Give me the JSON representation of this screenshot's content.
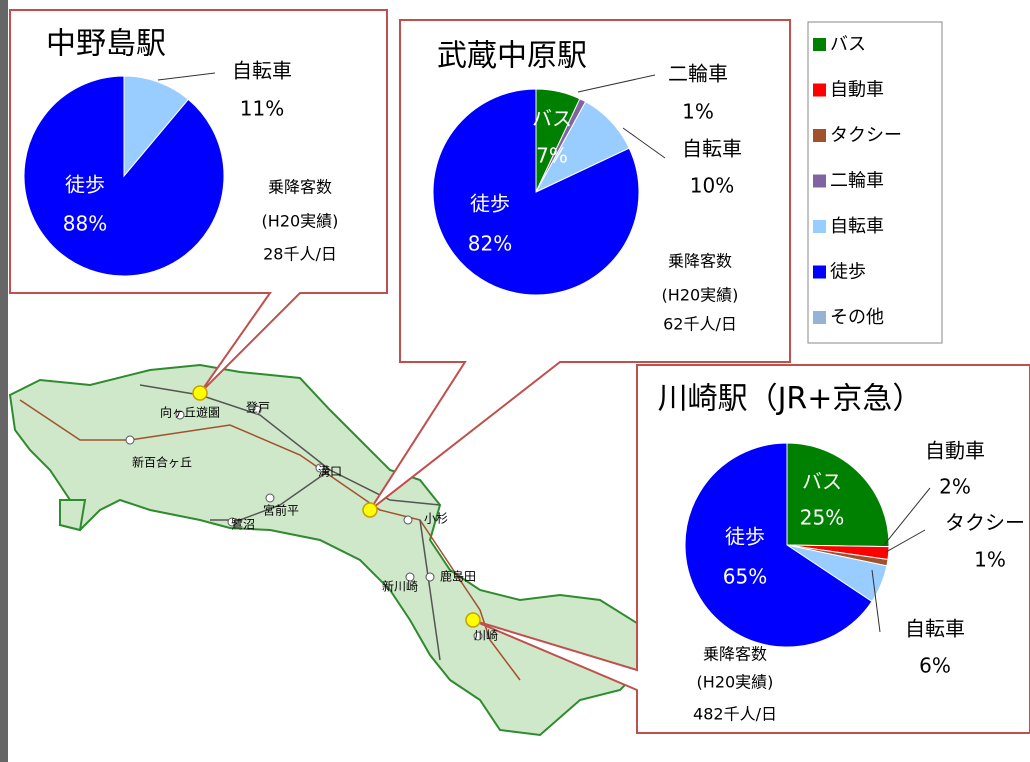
{
  "chart_data": [
    {
      "type": "pie",
      "title": "中野島駅",
      "categories": [
        "自転車",
        "徒歩"
      ],
      "values": [
        11,
        88
      ],
      "value_labels": [
        "11%",
        "88%"
      ],
      "annotations": [
        "乗降客数",
        "(H20実績)",
        "28千人/日"
      ]
    },
    {
      "type": "pie",
      "title": "武蔵中原駅",
      "categories": [
        "バス",
        "二輪車",
        "自転車",
        "徒歩"
      ],
      "values": [
        7,
        1,
        10,
        82
      ],
      "value_labels": [
        "7%",
        "1%",
        "10%",
        "82%"
      ],
      "annotations": [
        "乗降客数",
        "(H20実績)",
        "62千人/日"
      ]
    },
    {
      "type": "pie",
      "title": "川崎駅（JR+京急）",
      "categories": [
        "バス",
        "自動車",
        "タクシー",
        "自転車",
        "徒歩"
      ],
      "values": [
        25,
        2,
        1,
        6,
        65
      ],
      "value_labels": [
        "25%",
        "2%",
        "1%",
        "6%",
        "65%"
      ],
      "annotations": [
        "乗降客数",
        "(H20実績)",
        "482千人/日"
      ]
    }
  ],
  "legend": {
    "items": [
      {
        "name": "バス",
        "color": "#008000"
      },
      {
        "name": "自動車",
        "color": "#ff0000"
      },
      {
        "name": "タクシー",
        "color": "#a0522d"
      },
      {
        "name": "二輪車",
        "color": "#8064a2"
      },
      {
        "name": "自転車",
        "color": "#99ccff"
      },
      {
        "name": "徒歩",
        "color": "#0000ff"
      },
      {
        "name": "その他",
        "color": "#95b3d7"
      }
    ]
  },
  "map": {
    "stations": [
      "向ヶ丘遊園",
      "登戸",
      "新百合ヶ丘",
      "溝口",
      "宮前平",
      "鷺沼",
      "小杉",
      "鹿島田",
      "新川崎",
      "川崎"
    ]
  }
}
